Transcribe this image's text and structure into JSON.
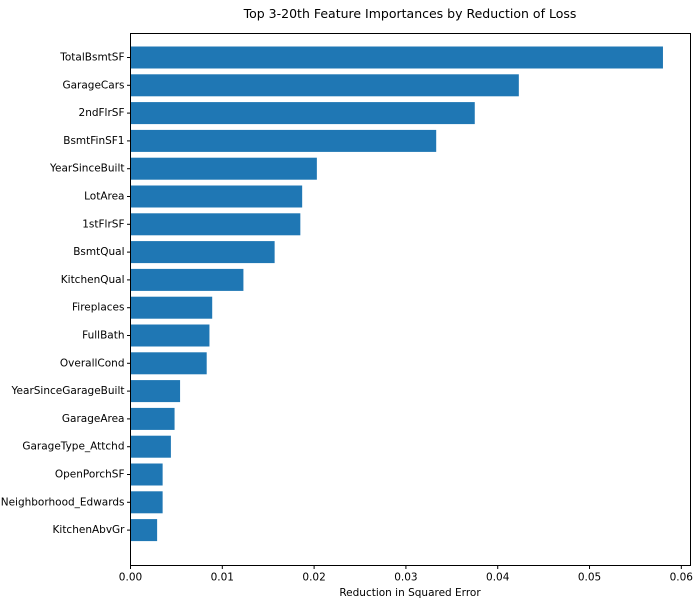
{
  "chart_data": {
    "type": "bar",
    "orientation": "horizontal",
    "title": "Top 3-20th Feature Importances by Reduction of Loss",
    "xlabel": "Reduction in Squared Error",
    "ylabel": "",
    "xlim": [
      0,
      0.061
    ],
    "xticks": [
      0.0,
      0.01,
      0.02,
      0.03,
      0.04,
      0.05,
      0.06
    ],
    "xtick_labels": [
      "0.00",
      "0.01",
      "0.02",
      "0.03",
      "0.04",
      "0.05",
      "0.06"
    ],
    "grid": false,
    "bar_color": "#1f77b4",
    "categories": [
      "TotalBsmtSF",
      "GarageCars",
      "2ndFlrSF",
      "BsmtFinSF1",
      "YearSinceBuilt",
      "LotArea",
      "1stFlrSF",
      "BsmtQual",
      "KitchenQual",
      "Fireplaces",
      "FullBath",
      "OverallCond",
      "YearSinceGarageBuilt",
      "GarageArea",
      "GarageType_Attchd",
      "OpenPorchSF",
      "Neighborhood_Edwards",
      "KitchenAbvGr"
    ],
    "values": [
      0.058,
      0.0423,
      0.0375,
      0.0333,
      0.0203,
      0.0187,
      0.0185,
      0.0157,
      0.0123,
      0.0089,
      0.0086,
      0.0083,
      0.0054,
      0.0048,
      0.0044,
      0.0035,
      0.0035,
      0.0029
    ]
  }
}
